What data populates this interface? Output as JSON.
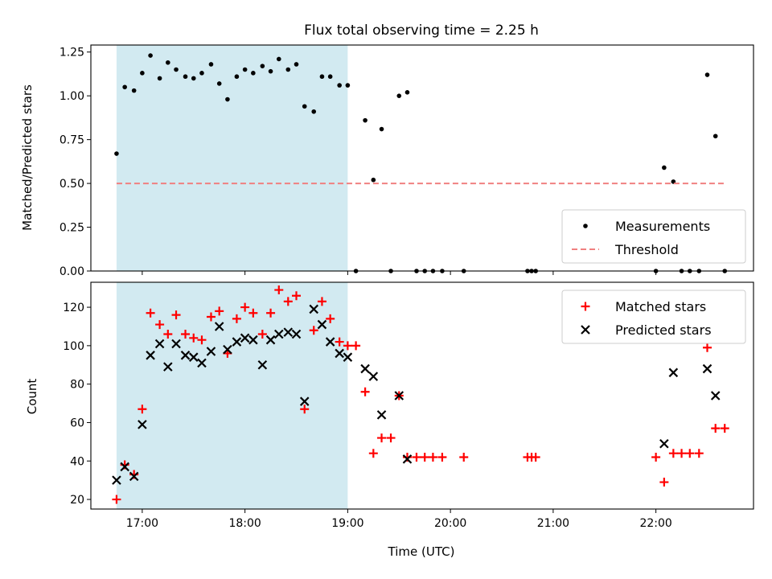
{
  "chart_data": [
    {
      "type": "scatter",
      "title": "Flux total observing time = 2.25 h",
      "xlabel": "",
      "ylabel": "Matched/Predicted stars",
      "xlim": [
        16.5,
        22.95
      ],
      "ylim": [
        0.0,
        1.29
      ],
      "yticks": [
        0.0,
        0.25,
        0.5,
        0.75,
        1.0,
        1.25
      ],
      "ytick_labels": [
        "0.00",
        "0.25",
        "0.50",
        "0.75",
        "1.00",
        "1.25"
      ],
      "shaded_span": {
        "x_start": 16.75,
        "x_end": 19.0,
        "color": "#add8e6"
      },
      "legend_position": "bottom-right",
      "series": [
        {
          "name": "Measurements",
          "marker": "dot",
          "color": "#000000",
          "points": [
            [
              16.75,
              0.67
            ],
            [
              16.83,
              1.05
            ],
            [
              16.92,
              1.03
            ],
            [
              17.0,
              1.13
            ],
            [
              17.08,
              1.23
            ],
            [
              17.17,
              1.1
            ],
            [
              17.25,
              1.19
            ],
            [
              17.33,
              1.15
            ],
            [
              17.42,
              1.11
            ],
            [
              17.5,
              1.1
            ],
            [
              17.58,
              1.13
            ],
            [
              17.67,
              1.18
            ],
            [
              17.75,
              1.07
            ],
            [
              17.83,
              0.98
            ],
            [
              17.92,
              1.11
            ],
            [
              18.0,
              1.15
            ],
            [
              18.08,
              1.13
            ],
            [
              18.17,
              1.17
            ],
            [
              18.25,
              1.14
            ],
            [
              18.33,
              1.21
            ],
            [
              18.42,
              1.15
            ],
            [
              18.5,
              1.18
            ],
            [
              18.58,
              0.94
            ],
            [
              18.67,
              0.91
            ],
            [
              18.75,
              1.11
            ],
            [
              18.83,
              1.11
            ],
            [
              18.92,
              1.06
            ],
            [
              19.0,
              1.06
            ],
            [
              19.08,
              0.0
            ],
            [
              19.17,
              0.86
            ],
            [
              19.25,
              0.52
            ],
            [
              19.33,
              0.81
            ],
            [
              19.42,
              0.0
            ],
            [
              19.5,
              1.0
            ],
            [
              19.58,
              1.02
            ],
            [
              19.67,
              0.0
            ],
            [
              19.75,
              0.0
            ],
            [
              19.83,
              0.0
            ],
            [
              19.92,
              0.0
            ],
            [
              20.13,
              0.0
            ],
            [
              20.75,
              0.0
            ],
            [
              20.79,
              0.0
            ],
            [
              20.83,
              0.0
            ],
            [
              22.0,
              0.0
            ],
            [
              22.08,
              0.59
            ],
            [
              22.17,
              0.51
            ],
            [
              22.25,
              0.0
            ],
            [
              22.33,
              0.0
            ],
            [
              22.42,
              0.0
            ],
            [
              22.5,
              1.12
            ],
            [
              22.58,
              0.77
            ],
            [
              22.67,
              0.0
            ]
          ]
        },
        {
          "name": "Threshold",
          "marker": "dashed-line",
          "color": "#f08080",
          "points": [
            [
              16.75,
              0.5
            ],
            [
              22.67,
              0.5
            ]
          ]
        }
      ]
    },
    {
      "type": "scatter",
      "title": "",
      "xlabel": "Time (UTC)",
      "ylabel": "Count",
      "xlim": [
        16.5,
        22.95
      ],
      "ylim": [
        15,
        133
      ],
      "xticks": [
        17,
        18,
        19,
        20,
        21,
        22
      ],
      "xtick_labels": [
        "17:00",
        "18:00",
        "19:00",
        "20:00",
        "21:00",
        "22:00"
      ],
      "yticks": [
        20,
        40,
        60,
        80,
        100,
        120
      ],
      "ytick_labels": [
        "20",
        "40",
        "60",
        "80",
        "100",
        "120"
      ],
      "shaded_span": {
        "x_start": 16.75,
        "x_end": 19.0,
        "color": "#add8e6"
      },
      "legend_position": "top-right",
      "series": [
        {
          "name": "Matched stars",
          "marker": "plus",
          "color": "#ff0000",
          "points": [
            [
              16.75,
              20
            ],
            [
              16.83,
              38
            ],
            [
              16.92,
              33
            ],
            [
              17.0,
              67
            ],
            [
              17.08,
              117
            ],
            [
              17.17,
              111
            ],
            [
              17.25,
              106
            ],
            [
              17.33,
              116
            ],
            [
              17.42,
              106
            ],
            [
              17.5,
              104
            ],
            [
              17.58,
              103
            ],
            [
              17.67,
              115
            ],
            [
              17.75,
              118
            ],
            [
              17.83,
              96
            ],
            [
              17.92,
              114
            ],
            [
              18.0,
              120
            ],
            [
              18.08,
              117
            ],
            [
              18.17,
              106
            ],
            [
              18.25,
              117
            ],
            [
              18.33,
              129
            ],
            [
              18.42,
              123
            ],
            [
              18.5,
              126
            ],
            [
              18.58,
              67
            ],
            [
              18.67,
              108
            ],
            [
              18.75,
              123
            ],
            [
              18.83,
              114
            ],
            [
              18.92,
              102
            ],
            [
              19.0,
              100
            ],
            [
              19.08,
              100
            ],
            [
              19.17,
              76
            ],
            [
              19.25,
              44
            ],
            [
              19.33,
              52
            ],
            [
              19.42,
              52
            ],
            [
              19.5,
              74
            ],
            [
              19.58,
              42
            ],
            [
              19.67,
              42
            ],
            [
              19.75,
              42
            ],
            [
              19.83,
              42
            ],
            [
              19.92,
              42
            ],
            [
              20.13,
              42
            ],
            [
              20.75,
              42
            ],
            [
              20.79,
              42
            ],
            [
              20.83,
              42
            ],
            [
              22.0,
              42
            ],
            [
              22.08,
              29
            ],
            [
              22.17,
              44
            ],
            [
              22.25,
              44
            ],
            [
              22.33,
              44
            ],
            [
              22.42,
              44
            ],
            [
              22.5,
              99
            ],
            [
              22.58,
              57
            ],
            [
              22.67,
              57
            ]
          ]
        },
        {
          "name": "Predicted stars",
          "marker": "x",
          "color": "#000000",
          "points": [
            [
              16.75,
              30
            ],
            [
              16.83,
              37
            ],
            [
              16.92,
              32
            ],
            [
              17.0,
              59
            ],
            [
              17.08,
              95
            ],
            [
              17.17,
              101
            ],
            [
              17.25,
              89
            ],
            [
              17.33,
              101
            ],
            [
              17.42,
              95
            ],
            [
              17.5,
              94
            ],
            [
              17.58,
              91
            ],
            [
              17.67,
              97
            ],
            [
              17.75,
              110
            ],
            [
              17.83,
              98
            ],
            [
              17.92,
              102
            ],
            [
              18.0,
              104
            ],
            [
              18.08,
              103
            ],
            [
              18.17,
              90
            ],
            [
              18.25,
              103
            ],
            [
              18.33,
              106
            ],
            [
              18.42,
              107
            ],
            [
              18.5,
              106
            ],
            [
              18.58,
              71
            ],
            [
              18.67,
              119
            ],
            [
              18.75,
              111
            ],
            [
              18.83,
              102
            ],
            [
              18.92,
              96
            ],
            [
              19.0,
              94
            ],
            [
              19.17,
              88
            ],
            [
              19.25,
              84
            ],
            [
              19.33,
              64
            ],
            [
              19.5,
              74
            ],
            [
              19.58,
              41
            ],
            [
              22.08,
              49
            ],
            [
              22.17,
              86
            ],
            [
              22.5,
              88
            ],
            [
              22.58,
              74
            ]
          ]
        }
      ]
    }
  ]
}
